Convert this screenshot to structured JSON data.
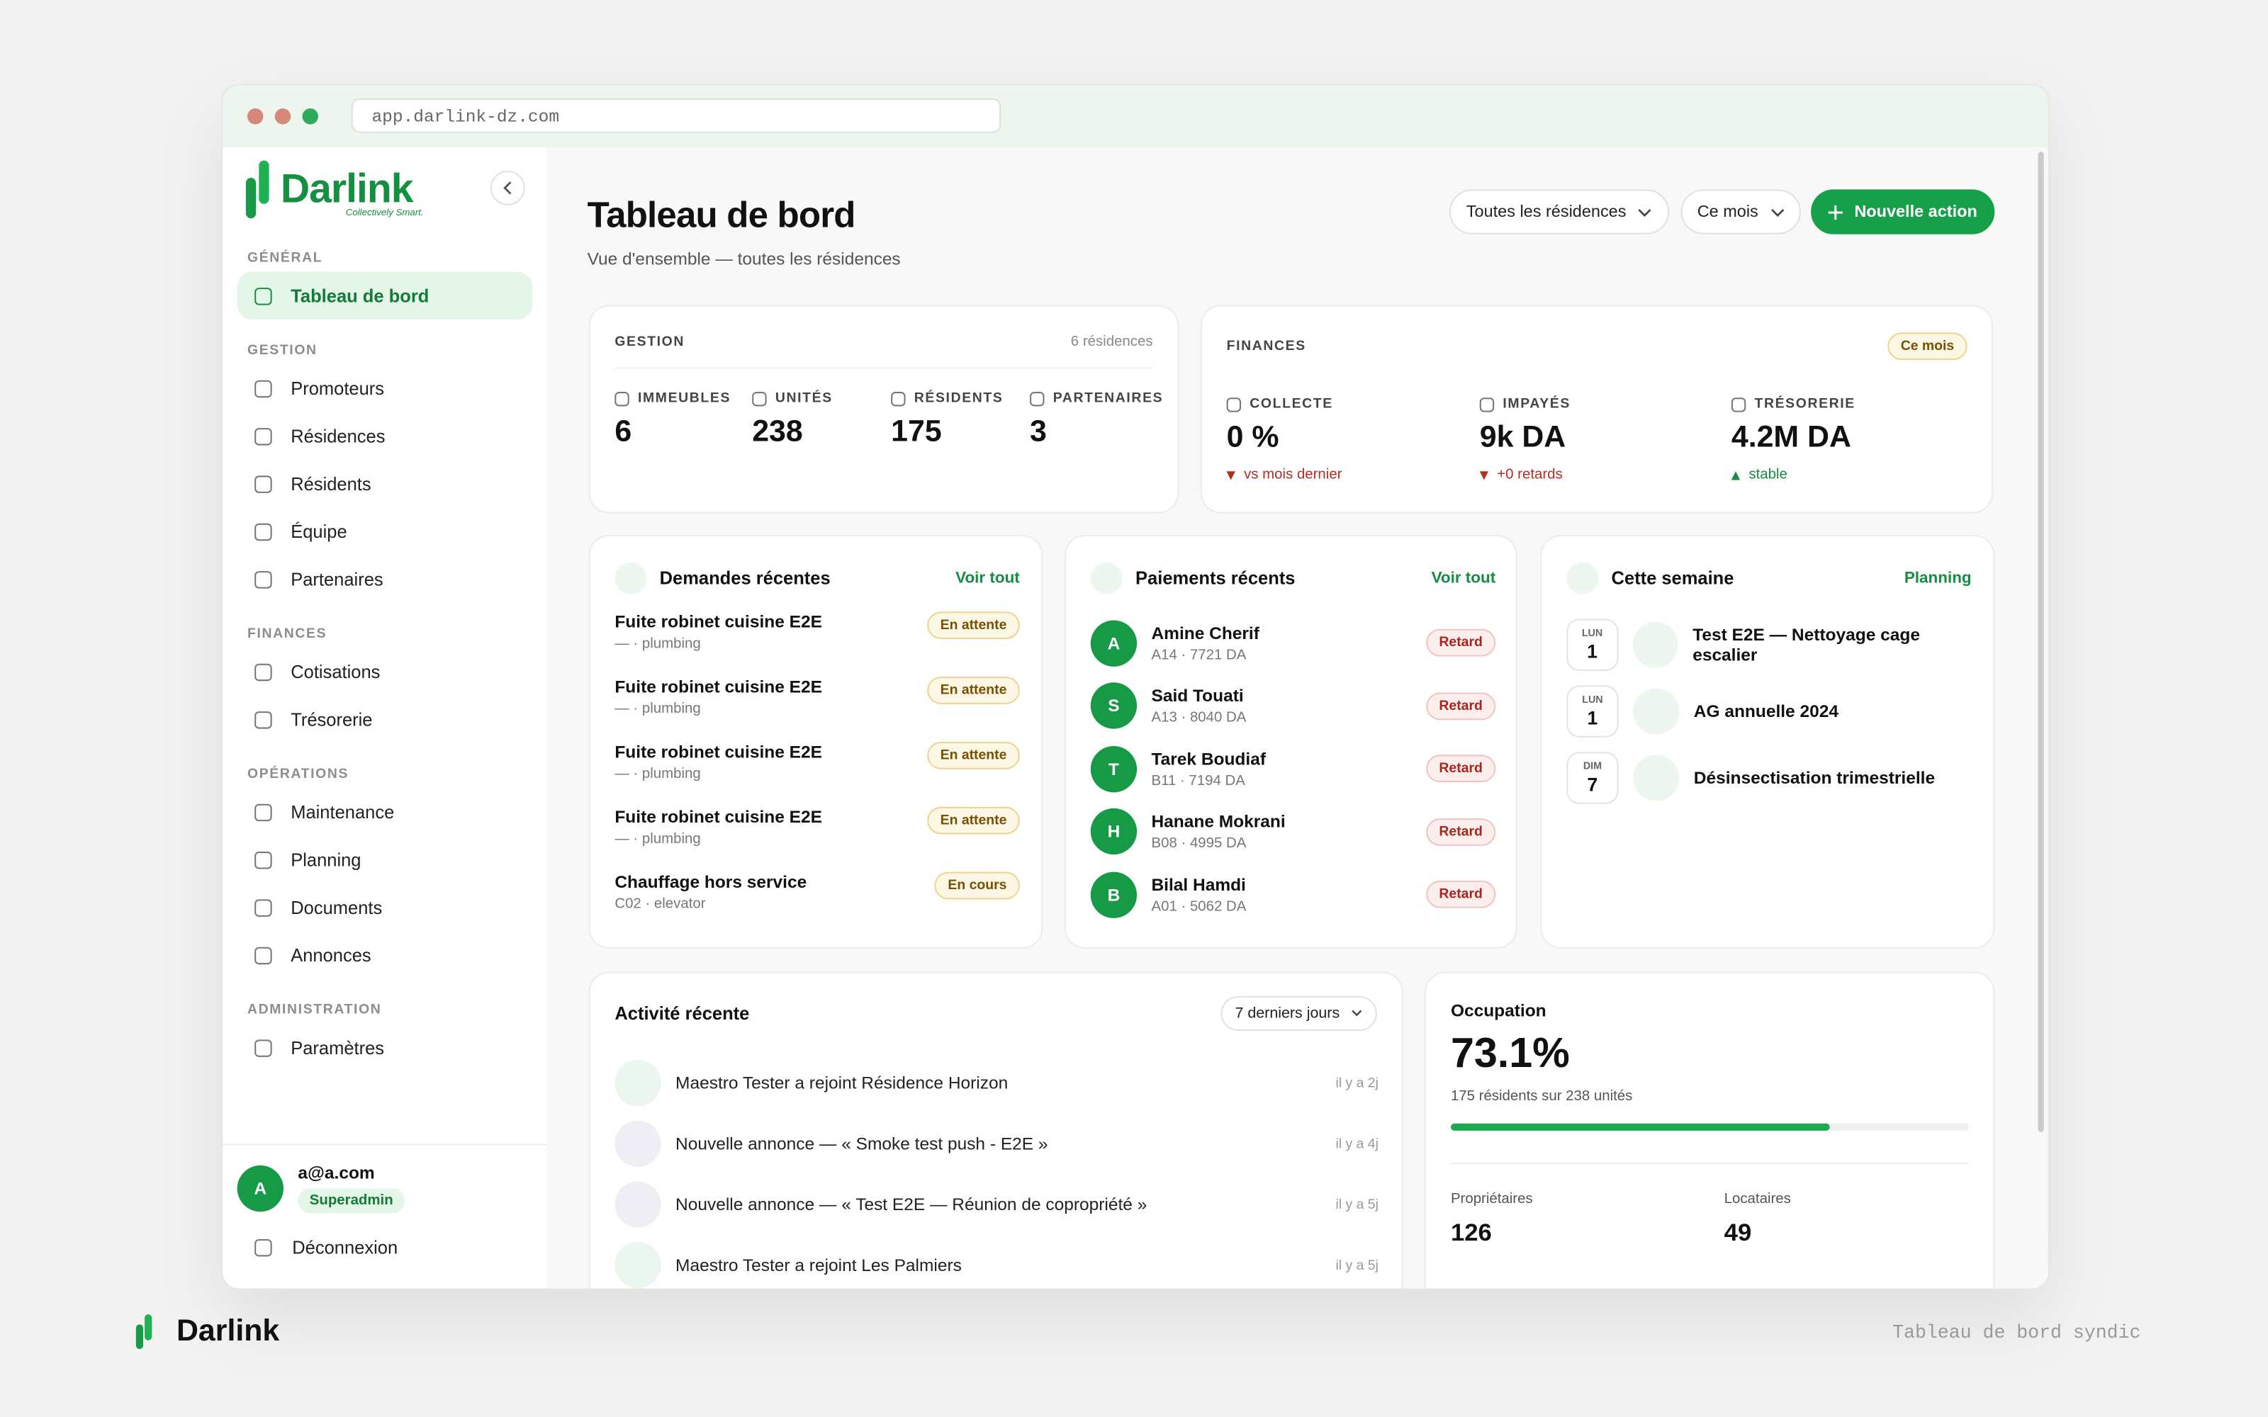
{
  "browser": {
    "url": "app.darlink-dz.com"
  },
  "sidebar": {
    "brand": "Darlink",
    "tagline": "Collectively Smart.",
    "sections": [
      {
        "title": "GÉNÉRAL",
        "items": [
          "Tableau de bord"
        ]
      },
      {
        "title": "GESTION",
        "items": [
          "Promoteurs",
          "Résidences",
          "Résidents",
          "Équipe",
          "Partenaires"
        ]
      },
      {
        "title": "FINANCES",
        "items": [
          "Cotisations",
          "Trésorerie"
        ]
      },
      {
        "title": "OPÉRATIONS",
        "items": [
          "Maintenance",
          "Planning",
          "Documents",
          "Annonces"
        ]
      },
      {
        "title": "ADMINISTRATION",
        "items": [
          "Paramètres"
        ]
      }
    ],
    "user": {
      "initial": "A",
      "email": "a@a.com",
      "role": "Superadmin"
    },
    "logout": "Déconnexion"
  },
  "header": {
    "title": "Tableau de bord",
    "subtitle": "Vue d'ensemble — toutes les résidences",
    "filters": [
      "Toutes les résidences",
      "Ce mois"
    ],
    "action": "Nouvelle action"
  },
  "gestion": {
    "title": "GESTION",
    "note": "6 résidences",
    "stats": [
      {
        "label": "IMMEUBLES",
        "value": "6"
      },
      {
        "label": "UNITÉS",
        "value": "238"
      },
      {
        "label": "RÉSIDENTS",
        "value": "175"
      },
      {
        "label": "PARTENAIRES",
        "value": "3"
      }
    ]
  },
  "finances": {
    "title": "FINANCES",
    "badge": "Ce mois",
    "stats": [
      {
        "label": "COLLECTE",
        "value": "0 %",
        "trend": "vs mois dernier"
      },
      {
        "label": "IMPAYÉS",
        "value": "9k DA",
        "trend": "+0 retards"
      },
      {
        "label": "TRÉSORERIE",
        "value": "4.2M DA",
        "trend": "stable"
      }
    ]
  },
  "demandes": {
    "title": "Demandes récentes",
    "link": "Voir tout",
    "items": [
      {
        "title": "Fuite robinet cuisine E2E",
        "meta": "— · plumbing",
        "status": "En attente"
      },
      {
        "title": "Fuite robinet cuisine E2E",
        "meta": "— · plumbing",
        "status": "En attente"
      },
      {
        "title": "Fuite robinet cuisine E2E",
        "meta": "— · plumbing",
        "status": "En attente"
      },
      {
        "title": "Fuite robinet cuisine E2E",
        "meta": "— · plumbing",
        "status": "En attente"
      },
      {
        "title": "Chauffage hors service",
        "meta": "C02 · elevator",
        "status": "En cours"
      }
    ]
  },
  "paiements": {
    "title": "Paiements récents",
    "link": "Voir tout",
    "items": [
      {
        "initial": "A",
        "name": "Amine Cherif",
        "meta": "A14 · 7721 DA",
        "status": "Retard"
      },
      {
        "initial": "S",
        "name": "Said Touati",
        "meta": "A13 · 8040 DA",
        "status": "Retard"
      },
      {
        "initial": "T",
        "name": "Tarek Boudiaf",
        "meta": "B11 · 7194 DA",
        "status": "Retard"
      },
      {
        "initial": "H",
        "name": "Hanane Mokrani",
        "meta": "B08 · 4995 DA",
        "status": "Retard"
      },
      {
        "initial": "B",
        "name": "Bilal Hamdi",
        "meta": "A01 · 5062 DA",
        "status": "Retard"
      }
    ]
  },
  "semaine": {
    "title": "Cette semaine",
    "link": "Planning",
    "events": [
      {
        "day": "LUN",
        "date": "1",
        "title": "Test E2E — Nettoyage cage escalier"
      },
      {
        "day": "LUN",
        "date": "1",
        "title": "AG annuelle 2024"
      },
      {
        "day": "DIM",
        "date": "7",
        "title": "Désinsectisation trimestrielle"
      }
    ]
  },
  "activite": {
    "title": "Activité récente",
    "filter": "7 derniers jours",
    "items": [
      {
        "text": "Maestro Tester a rejoint Résidence Horizon",
        "time": "il y a 2j"
      },
      {
        "text": "Nouvelle annonce — « Smoke test push - E2E »",
        "time": "il y a 4j"
      },
      {
        "text": "Nouvelle annonce — « Test E2E — Réunion de copropriété »",
        "time": "il y a 5j"
      },
      {
        "text": "Maestro Tester a rejoint Les Palmiers",
        "time": "il y a 5j"
      }
    ]
  },
  "occupation": {
    "title": "Occupation",
    "rate": "73.1%",
    "detail": "175 résidents sur 238 unités",
    "owners": {
      "label": "Propriétaires",
      "value": "126"
    },
    "tenants": {
      "label": "Locataires",
      "value": "49"
    }
  },
  "footer": {
    "brand": "Darlink",
    "caption": "Tableau de bord syndic"
  }
}
